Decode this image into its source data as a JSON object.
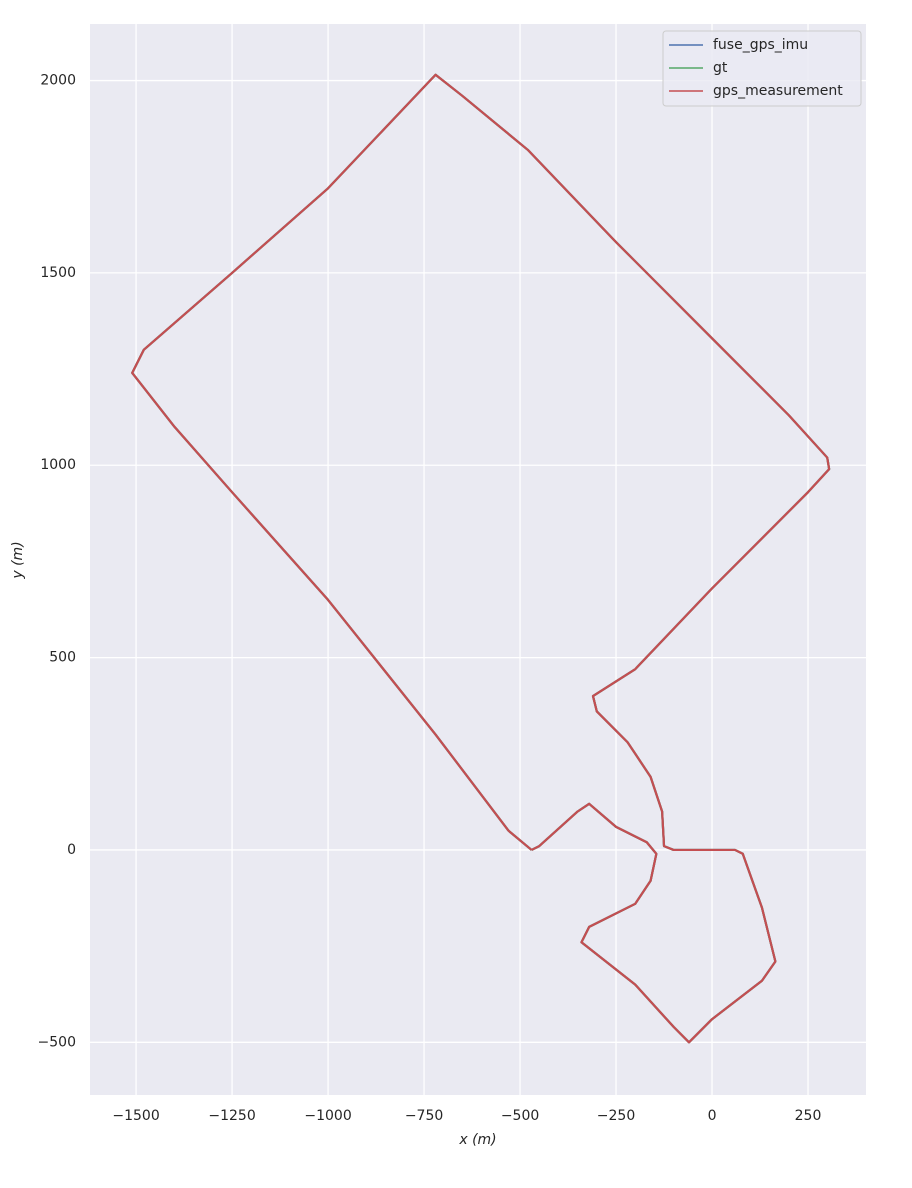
{
  "chart_data": {
    "type": "line",
    "xlabel": "x (m)",
    "ylabel": "y (m)",
    "xlim": [
      -1620,
      401
    ],
    "ylim": [
      -637,
      2147
    ],
    "xticks": [
      {
        "value": -1500,
        "label": "−1500"
      },
      {
        "value": -1250,
        "label": "−1250"
      },
      {
        "value": -1000,
        "label": "−1000"
      },
      {
        "value": -750,
        "label": "−750"
      },
      {
        "value": -500,
        "label": "−500"
      },
      {
        "value": -250,
        "label": "−250"
      },
      0,
      250
    ],
    "yticks": [
      {
        "value": -500,
        "label": "−500"
      },
      0,
      500,
      1000,
      1500,
      2000
    ],
    "grid": true,
    "legend": "upper right",
    "series": [
      {
        "name": "fuse_gps_imu",
        "color": "#4c72b0",
        "x": [
          -470,
          -530,
          -720,
          -1000,
          -1250,
          -1400,
          -1510,
          -1480,
          -1250,
          -1000,
          -720,
          -650,
          -480,
          -250,
          0,
          200,
          300,
          305,
          250,
          0,
          -200,
          -310,
          -300,
          -220,
          -160,
          -130,
          -125,
          -100,
          60,
          80,
          130,
          165,
          130,
          0,
          -60,
          -100,
          -200,
          -340,
          -320,
          -200,
          -160,
          -145,
          -170,
          -250,
          -320,
          -350,
          -450,
          -470
        ],
        "values": [
          0,
          50,
          300,
          650,
          930,
          1100,
          1240,
          1300,
          1500,
          1720,
          2015,
          1960,
          1820,
          1580,
          1330,
          1130,
          1020,
          990,
          930,
          680,
          470,
          400,
          360,
          280,
          190,
          100,
          10,
          0,
          0,
          -10,
          -150,
          -290,
          -340,
          -440,
          -500,
          -460,
          -350,
          -240,
          -200,
          -140,
          -80,
          -10,
          20,
          60,
          120,
          100,
          10,
          0
        ]
      },
      {
        "name": "gt",
        "color": "#55a868",
        "x": [
          -470,
          -530,
          -720,
          -1000,
          -1250,
          -1400,
          -1510,
          -1480,
          -1250,
          -1000,
          -720,
          -650,
          -480,
          -250,
          0,
          200,
          300,
          305,
          250,
          0,
          -200,
          -310,
          -300,
          -220,
          -160,
          -130,
          -125,
          -100,
          60,
          80,
          130,
          165,
          130,
          0,
          -60,
          -100,
          -200,
          -340,
          -320,
          -200,
          -160,
          -145,
          -170,
          -250,
          -320,
          -350,
          -450,
          -470
        ],
        "values": [
          0,
          50,
          300,
          650,
          930,
          1100,
          1240,
          1300,
          1500,
          1720,
          2015,
          1960,
          1820,
          1580,
          1330,
          1130,
          1020,
          990,
          930,
          680,
          470,
          400,
          360,
          280,
          190,
          100,
          10,
          0,
          0,
          -10,
          -150,
          -290,
          -340,
          -440,
          -500,
          -460,
          -350,
          -240,
          -200,
          -140,
          -80,
          -10,
          20,
          60,
          120,
          100,
          10,
          0
        ]
      },
      {
        "name": "gps_measurement",
        "color": "#c44e52",
        "x": [
          -470,
          -530,
          -720,
          -1000,
          -1250,
          -1400,
          -1510,
          -1480,
          -1250,
          -1000,
          -720,
          -650,
          -480,
          -250,
          0,
          200,
          300,
          305,
          250,
          0,
          -200,
          -310,
          -300,
          -220,
          -160,
          -130,
          -125,
          -100,
          60,
          80,
          130,
          165,
          130,
          0,
          -60,
          -100,
          -200,
          -340,
          -320,
          -200,
          -160,
          -145,
          -170,
          -250,
          -320,
          -350,
          -450,
          -470
        ],
        "values": [
          0,
          50,
          300,
          650,
          930,
          1100,
          1240,
          1300,
          1500,
          1720,
          2015,
          1960,
          1820,
          1580,
          1330,
          1130,
          1020,
          990,
          930,
          680,
          470,
          400,
          360,
          280,
          190,
          100,
          10,
          0,
          0,
          -10,
          -150,
          -290,
          -340,
          -440,
          -500,
          -460,
          -350,
          -240,
          -200,
          -140,
          -80,
          -10,
          20,
          60,
          120,
          100,
          10,
          0
        ]
      }
    ]
  }
}
